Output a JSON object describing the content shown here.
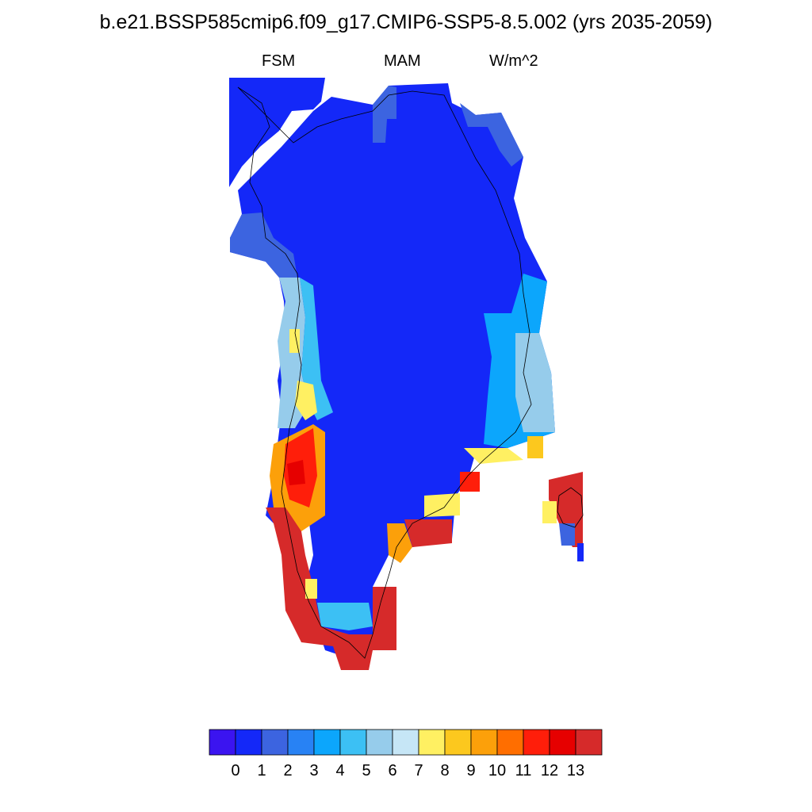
{
  "header": {
    "title": "b.e21.BSSP585cmip6.f09_g17.CMIP6-SSP5-8.5.002 (yrs 2035-2059)",
    "left_label": "FSM",
    "center_label": "MAM",
    "right_label": "W/m^2"
  },
  "colorbar": {
    "colors": [
      "#3b14f0",
      "#1428f8",
      "#3c64e0",
      "#2882f4",
      "#0ca6fc",
      "#3cc0f4",
      "#96cceb",
      "#c6e6f6",
      "#fff062",
      "#fcc81e",
      "#fca00a",
      "#ff6e00",
      "#ff1e0a",
      "#e60000",
      "#d62a2a"
    ],
    "tick_labels": [
      "0",
      "1",
      "2",
      "3",
      "4",
      "5",
      "6",
      "7",
      "8",
      "9",
      "10",
      "11",
      "12",
      "13"
    ]
  },
  "chart_data": {
    "type": "heatmap",
    "title": "b.e21.BSSP585cmip6.f09_g17.CMIP6-SSP5-8.5.002 (yrs 2035-2059)",
    "variable": "FSM",
    "season": "MAM",
    "units": "W/m^2",
    "legend_levels": [
      0,
      1,
      2,
      3,
      4,
      5,
      6,
      7,
      8,
      9,
      10,
      11,
      12,
      13
    ],
    "legend_placement": "bottom",
    "summary": "Interior of Greenland shows melt flux between 0 and 1 W/m^2; coastal margins show 1-7 W/m^2 with highest values (12-13+) along the southwest and southern coasts."
  }
}
